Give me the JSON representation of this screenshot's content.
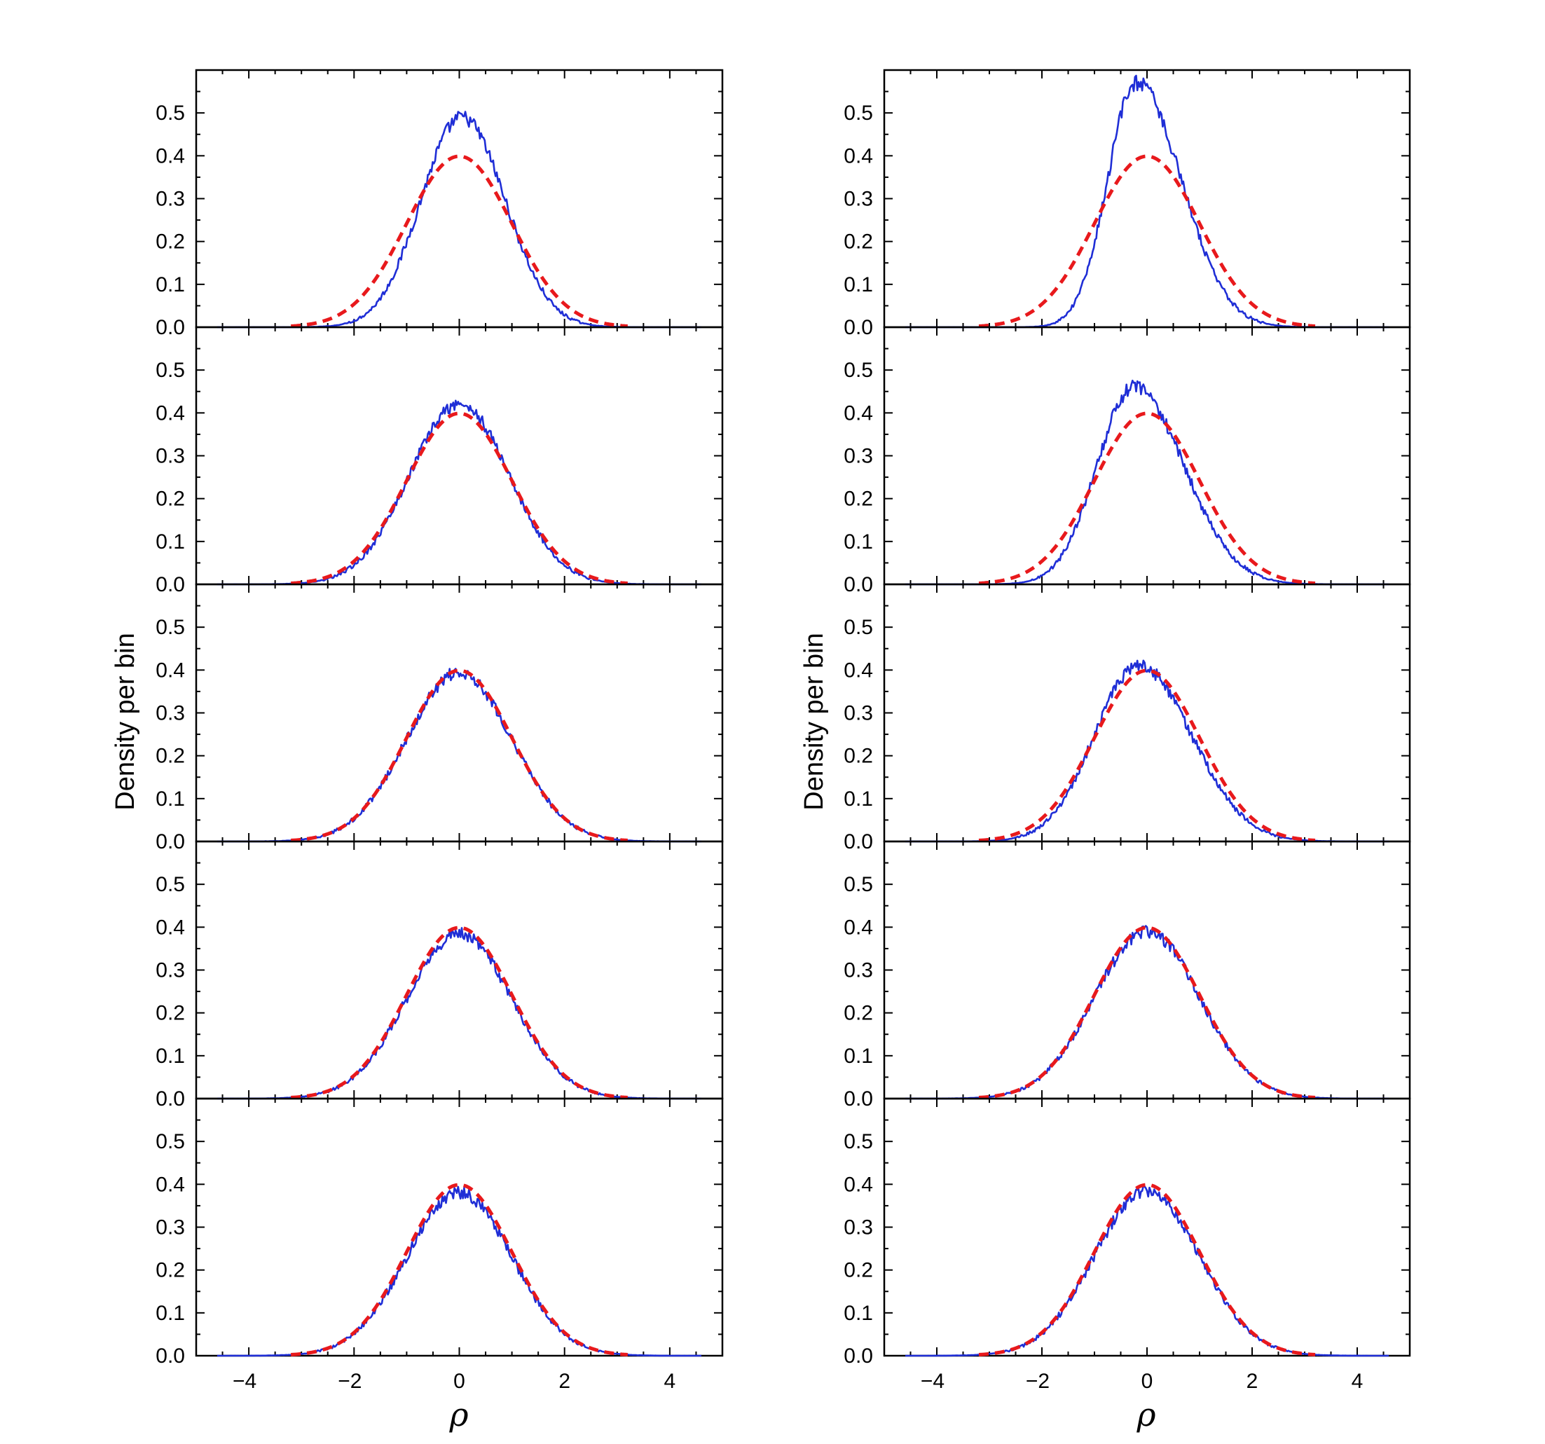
{
  "chart_data": [
    {
      "type": "line",
      "column": "left",
      "xlabel": "ρ",
      "ylabel": "Density per bin",
      "xlim": [
        -5,
        5
      ],
      "ylim": [
        0,
        0.6
      ],
      "xticks": [
        "−4",
        "−2",
        "0",
        "2",
        "4"
      ],
      "yticks": [
        "0.0",
        "0.1",
        "0.2",
        "0.3",
        "0.4",
        "0.5"
      ],
      "panels": [
        {
          "series": [
            {
              "style": "solid blue",
              "peak_x": 0.05,
              "peak_y": 0.49,
              "sigma_left": 0.78,
              "sigma_right": 0.82
            },
            {
              "style": "dashed red",
              "type": "normal pdf",
              "mean": 0,
              "sd": 1,
              "peak_y": 0.399
            }
          ]
        },
        {
          "series": [
            {
              "style": "solid blue",
              "peak_x": 0.0,
              "peak_y": 0.42,
              "sigma_left": 0.95,
              "sigma_right": 0.95
            },
            {
              "style": "dashed red",
              "type": "normal pdf",
              "mean": 0,
              "sd": 1,
              "peak_y": 0.399
            }
          ]
        },
        {
          "series": [
            {
              "style": "solid blue",
              "peak_x": 0.0,
              "peak_y": 0.395,
              "sigma_left": 1.0,
              "sigma_right": 1.0
            },
            {
              "style": "dashed red",
              "type": "normal pdf",
              "mean": 0,
              "sd": 1,
              "peak_y": 0.399
            }
          ]
        },
        {
          "series": [
            {
              "style": "solid blue",
              "peak_x": 0.0,
              "peak_y": 0.385,
              "sigma_left": 1.0,
              "sigma_right": 1.0
            },
            {
              "style": "dashed red",
              "type": "normal pdf",
              "mean": 0,
              "sd": 1,
              "peak_y": 0.399
            }
          ]
        },
        {
          "series": [
            {
              "style": "solid blue",
              "peak_x": 0.0,
              "peak_y": 0.38,
              "sigma_left": 1.0,
              "sigma_right": 1.0
            },
            {
              "style": "dashed red",
              "type": "normal pdf",
              "mean": 0,
              "sd": 1,
              "peak_y": 0.399
            }
          ]
        }
      ]
    },
    {
      "type": "line",
      "column": "right",
      "xlabel": "ρ",
      "ylabel": "Density per bin",
      "xlim": [
        -5,
        5
      ],
      "ylim": [
        0,
        0.6
      ],
      "xticks": [
        "−4",
        "−2",
        "0",
        "2",
        "4"
      ],
      "yticks": [
        "0.0",
        "0.1",
        "0.2",
        "0.3",
        "0.4",
        "0.5"
      ],
      "panels": [
        {
          "series": [
            {
              "style": "solid blue",
              "peak_x": -0.2,
              "peak_y": 0.57,
              "sigma_left": 0.55,
              "sigma_right": 0.85
            },
            {
              "style": "dashed red",
              "type": "normal pdf",
              "mean": 0,
              "sd": 1,
              "peak_y": 0.399
            }
          ]
        },
        {
          "series": [
            {
              "style": "solid blue",
              "peak_x": -0.25,
              "peak_y": 0.46,
              "sigma_left": 0.7,
              "sigma_right": 0.95
            },
            {
              "style": "dashed red",
              "type": "normal pdf",
              "mean": 0,
              "sd": 1,
              "peak_y": 0.399
            }
          ]
        },
        {
          "series": [
            {
              "style": "solid blue",
              "peak_x": -0.15,
              "peak_y": 0.41,
              "sigma_left": 0.85,
              "sigma_right": 1.0
            },
            {
              "style": "dashed red",
              "type": "normal pdf",
              "mean": 0,
              "sd": 1,
              "peak_y": 0.399
            }
          ]
        },
        {
          "series": [
            {
              "style": "solid blue",
              "peak_x": 0.0,
              "peak_y": 0.39,
              "sigma_left": 1.0,
              "sigma_right": 1.0
            },
            {
              "style": "dashed red",
              "type": "normal pdf",
              "mean": 0,
              "sd": 1,
              "peak_y": 0.399
            }
          ]
        },
        {
          "series": [
            {
              "style": "solid blue",
              "peak_x": 0.0,
              "peak_y": 0.385,
              "sigma_left": 1.0,
              "sigma_right": 1.0
            },
            {
              "style": "dashed red",
              "type": "normal pdf",
              "mean": 0,
              "sd": 1,
              "peak_y": 0.399
            }
          ]
        }
      ]
    }
  ],
  "colors": {
    "empirical": "#1f2ed6",
    "fit": "#e8191c"
  }
}
